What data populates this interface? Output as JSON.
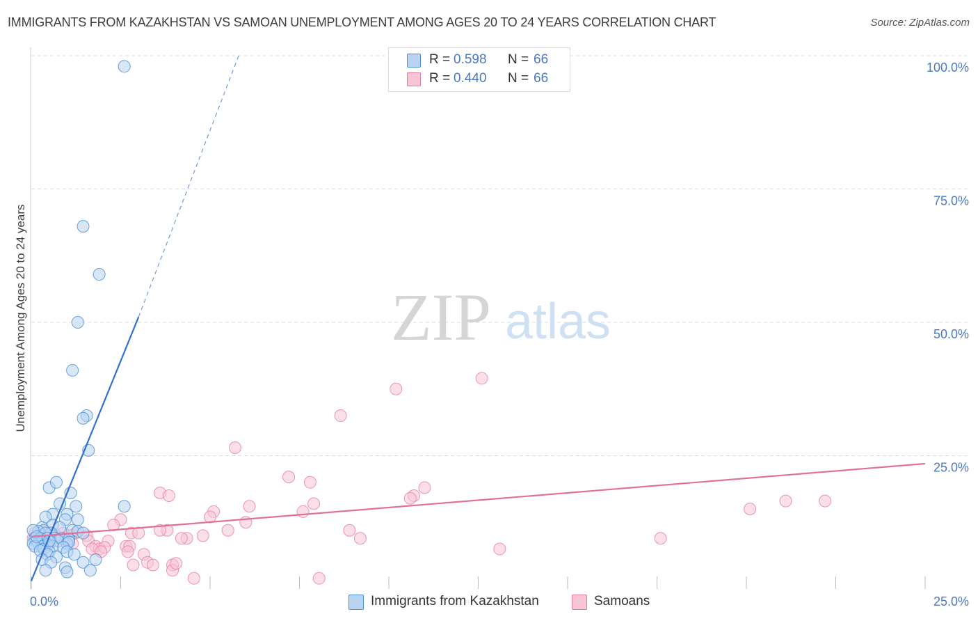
{
  "title": "IMMIGRANTS FROM KAZAKHSTAN VS SAMOAN UNEMPLOYMENT AMONG AGES 20 TO 24 YEARS CORRELATION CHART",
  "source": "Source: ZipAtlas.com",
  "watermark": {
    "zip": "ZIP",
    "atlas": "atlas"
  },
  "legend": {
    "r_label": "R =",
    "n_label": "N =",
    "series": [
      {
        "name": "Immigrants from Kazakhstan",
        "r": "0.598",
        "n": "66"
      },
      {
        "name": "Samoans",
        "r": "0.440",
        "n": "66"
      }
    ]
  },
  "colors": {
    "blue": "#4a90d9",
    "blue_fill": "#b8d4f2",
    "blue_line": "#2f6fcf",
    "pink": "#e87aa0",
    "pink_fill": "#f7c5d6",
    "pink_line": "#e0709a",
    "axis_label": "#4a78c4",
    "grid": "#dddddd"
  },
  "chart_data": {
    "type": "scatter",
    "title": "IMMIGRANTS FROM KAZAKHSTAN VS SAMOAN UNEMPLOYMENT AMONG AGES 20 TO 24 YEARS CORRELATION CHART",
    "xlabel": "",
    "ylabel": "Unemployment Among Ages 20 to 24 years",
    "xlim": [
      0,
      25
    ],
    "ylim": [
      0,
      100
    ],
    "x_tick_labels": [
      "0.0%",
      "25.0%"
    ],
    "y_tick_labels": [
      "25.0%",
      "50.0%",
      "75.0%",
      "100.0%"
    ],
    "grid": true,
    "series": [
      {
        "name": "Immigrants from Kazakhstan",
        "color": "#4a90d9",
        "points": [
          [
            2.6,
            98
          ],
          [
            1.45,
            68
          ],
          [
            1.9,
            59
          ],
          [
            1.3,
            50
          ],
          [
            1.15,
            41
          ],
          [
            1.55,
            32.5
          ],
          [
            1.45,
            32
          ],
          [
            1.6,
            26
          ],
          [
            0.5,
            19
          ],
          [
            0.7,
            20
          ],
          [
            1.1,
            18
          ],
          [
            0.8,
            16
          ],
          [
            1.25,
            15.5
          ],
          [
            2.6,
            15.5
          ],
          [
            0.6,
            14
          ],
          [
            1.0,
            14
          ],
          [
            0.4,
            13.5
          ],
          [
            0.95,
            13
          ],
          [
            1.3,
            13
          ],
          [
            0.6,
            12
          ],
          [
            0.3,
            11.5
          ],
          [
            0.8,
            11.5
          ],
          [
            1.15,
            11
          ],
          [
            0.35,
            11
          ],
          [
            0.55,
            10.5
          ],
          [
            0.2,
            10.8
          ],
          [
            1.3,
            10.8
          ],
          [
            1.45,
            10.5
          ],
          [
            0.4,
            10.5
          ],
          [
            0.05,
            11
          ],
          [
            0.1,
            9.5
          ],
          [
            0.25,
            9.5
          ],
          [
            0.45,
            9.5
          ],
          [
            0.65,
            9.5
          ],
          [
            0.85,
            9.5
          ],
          [
            1.05,
            9.3
          ],
          [
            0.15,
            9.0
          ],
          [
            0.3,
            8.8
          ],
          [
            0.55,
            8.8
          ],
          [
            0.75,
            9.0
          ],
          [
            1.0,
            8.5
          ],
          [
            1.05,
            8.8
          ],
          [
            0.2,
            8.5
          ],
          [
            0.45,
            8.3
          ],
          [
            0.3,
            8.0
          ],
          [
            0.6,
            8.0
          ],
          [
            0.05,
            8.5
          ],
          [
            0.1,
            8.0
          ],
          [
            0.9,
            7.8
          ],
          [
            0.35,
            7.5
          ],
          [
            0.25,
            7.2
          ],
          [
            0.5,
            7.0
          ],
          [
            1.0,
            7.0
          ],
          [
            1.2,
            6.5
          ],
          [
            0.45,
            6.5
          ],
          [
            0.7,
            6.0
          ],
          [
            0.3,
            5.5
          ],
          [
            0.55,
            5.0
          ],
          [
            1.45,
            5.0
          ],
          [
            1.8,
            5.5
          ],
          [
            0.95,
            4.0
          ],
          [
            0.4,
            3.5
          ],
          [
            1.0,
            3.2
          ],
          [
            1.65,
            3.5
          ],
          [
            0.15,
            9.8
          ],
          [
            0.5,
            9.0
          ]
        ]
      },
      {
        "name": "Samoans",
        "color": "#e87aa0",
        "points": [
          [
            12.6,
            39.5
          ],
          [
            10.2,
            37.5
          ],
          [
            8.65,
            32.5
          ],
          [
            5.7,
            26.5
          ],
          [
            7.2,
            21
          ],
          [
            7.8,
            20
          ],
          [
            11.0,
            19
          ],
          [
            3.6,
            18
          ],
          [
            3.85,
            17.5
          ],
          [
            10.7,
            17.5
          ],
          [
            10.6,
            17
          ],
          [
            21.1,
            16.5
          ],
          [
            22.2,
            16.5
          ],
          [
            7.9,
            16
          ],
          [
            6.1,
            15.5
          ],
          [
            20.1,
            15
          ],
          [
            5.1,
            14.5
          ],
          [
            7.6,
            14.5
          ],
          [
            5.0,
            13.5
          ],
          [
            2.5,
            13
          ],
          [
            6.0,
            12.5
          ],
          [
            2.3,
            12
          ],
          [
            3.8,
            11
          ],
          [
            3.6,
            11
          ],
          [
            5.5,
            11
          ],
          [
            8.9,
            11
          ],
          [
            1.25,
            10.5
          ],
          [
            1.1,
            10.0
          ],
          [
            2.8,
            10.5
          ],
          [
            3.0,
            10.5
          ],
          [
            1.55,
            10.0
          ],
          [
            4.8,
            10.0
          ],
          [
            0.9,
            9.5
          ],
          [
            9.2,
            9.5
          ],
          [
            17.6,
            9.5
          ],
          [
            4.35,
            9.5
          ],
          [
            4.2,
            9.5
          ],
          [
            0.55,
            9.0
          ],
          [
            1.6,
            9.0
          ],
          [
            1.15,
            8.5
          ],
          [
            2.15,
            9.0
          ],
          [
            0.3,
            10.0
          ],
          [
            1.8,
            8.0
          ],
          [
            1.9,
            7.5
          ],
          [
            2.05,
            7.8
          ],
          [
            2.65,
            8.0
          ],
          [
            1.7,
            7.5
          ],
          [
            2.75,
            8.0
          ],
          [
            1.95,
            7.0
          ],
          [
            2.7,
            7.0
          ],
          [
            13.1,
            7.5
          ],
          [
            0.1,
            10.5
          ],
          [
            0.05,
            9.5
          ],
          [
            0.35,
            8.5
          ],
          [
            0.5,
            10.5
          ],
          [
            0.7,
            10.0
          ],
          [
            3.15,
            6.5
          ],
          [
            3.25,
            5.0
          ],
          [
            2.85,
            4.5
          ],
          [
            3.4,
            4.5
          ],
          [
            3.95,
            4.5
          ],
          [
            3.95,
            3.5
          ],
          [
            4.05,
            4.8
          ],
          [
            4.55,
            2.0
          ],
          [
            8.05,
            2.0
          ],
          [
            0.9,
            10.5
          ]
        ]
      }
    ],
    "trendlines": [
      {
        "series": "Immigrants from Kazakhstan",
        "x0": 0.0,
        "y0": 1.5,
        "x1": 3.0,
        "y1": 51,
        "extended_to_x": 5.8,
        "extended_to_y": 100
      },
      {
        "series": "Samoans",
        "x0": 0.0,
        "y0": 9.8,
        "x1": 25.0,
        "y1": 23.5
      }
    ]
  }
}
